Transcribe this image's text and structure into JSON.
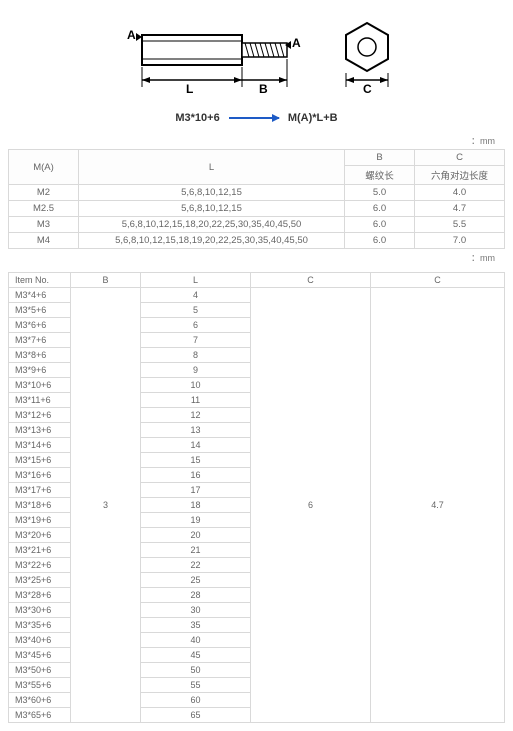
{
  "diagram": {
    "labels": {
      "A": "A",
      "L": "L",
      "B": "B",
      "C": "C"
    },
    "stroke": "#000000",
    "fill_hatch": "#ffffff"
  },
  "formula": {
    "left": "M3*10+6",
    "right": "M(A)*L+B",
    "arrow_color": "#1e5bc6"
  },
  "unit_label": "：mm",
  "table1": {
    "headers": {
      "ma": "M(A)",
      "l": "L",
      "b": "B",
      "b_sub": "螺纹长",
      "c": "C",
      "c_sub": "六角对边长度"
    },
    "rows": [
      {
        "ma": "M2",
        "l": "5,6,8,10,12,15",
        "b": "5.0",
        "c": "4.0"
      },
      {
        "ma": "M2.5",
        "l": "5,6,8,10,12,15",
        "b": "6.0",
        "c": "4.7"
      },
      {
        "ma": "M3",
        "l": "5,6,8,10,12,15,18,20,22,25,30,35,40,45,50",
        "b": "6.0",
        "c": "5.5"
      },
      {
        "ma": "M4",
        "l": "5,6,8,10,12,15,18,19,20,22,25,30,35,40,45,50",
        "b": "6.0",
        "c": "7.0"
      }
    ]
  },
  "table2": {
    "headers": {
      "item": "Item No.",
      "b": "B",
      "l": "L",
      "c1": "C",
      "c2": "C"
    },
    "shared": {
      "b": "3",
      "c1": "6",
      "c2": "4.7"
    },
    "rows": [
      {
        "item": "M3*4+6",
        "l": "4"
      },
      {
        "item": "M3*5+6",
        "l": "5"
      },
      {
        "item": "M3*6+6",
        "l": "6"
      },
      {
        "item": "M3*7+6",
        "l": "7"
      },
      {
        "item": "M3*8+6",
        "l": "8"
      },
      {
        "item": "M3*9+6",
        "l": "9"
      },
      {
        "item": "M3*10+6",
        "l": "10"
      },
      {
        "item": "M3*11+6",
        "l": "11"
      },
      {
        "item": "M3*12+6",
        "l": "12"
      },
      {
        "item": "M3*13+6",
        "l": "13"
      },
      {
        "item": "M3*14+6",
        "l": "14"
      },
      {
        "item": "M3*15+6",
        "l": "15"
      },
      {
        "item": "M3*16+6",
        "l": "16"
      },
      {
        "item": "M3*17+6",
        "l": "17"
      },
      {
        "item": "M3*18+6",
        "l": "18"
      },
      {
        "item": "M3*19+6",
        "l": "19"
      },
      {
        "item": "M3*20+6",
        "l": "20"
      },
      {
        "item": "M3*21+6",
        "l": "21"
      },
      {
        "item": "M3*22+6",
        "l": "22"
      },
      {
        "item": "M3*25+6",
        "l": "25"
      },
      {
        "item": "M3*28+6",
        "l": "28"
      },
      {
        "item": "M3*30+6",
        "l": "30"
      },
      {
        "item": "M3*35+6",
        "l": "35"
      },
      {
        "item": "M3*40+6",
        "l": "40"
      },
      {
        "item": "M3*45+6",
        "l": "45"
      },
      {
        "item": "M3*50+6",
        "l": "50"
      },
      {
        "item": "M3*55+6",
        "l": "55"
      },
      {
        "item": "M3*60+6",
        "l": "60"
      },
      {
        "item": "M3*65+6",
        "l": "65"
      }
    ]
  }
}
